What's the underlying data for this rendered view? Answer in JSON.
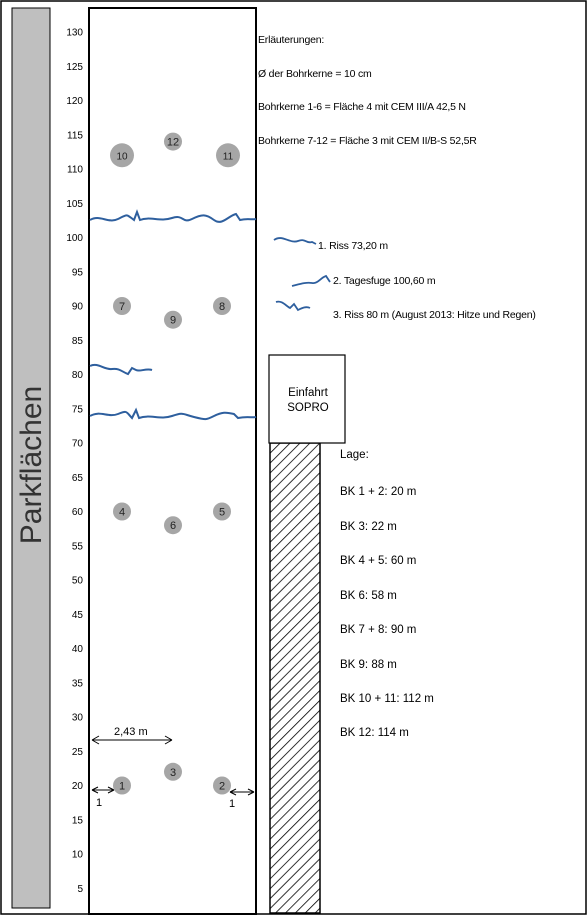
{
  "sidebar": {
    "label": "Parkflächen"
  },
  "axis": {
    "ticks": [
      "130",
      "125",
      "120",
      "115",
      "110",
      "105",
      "100",
      "95",
      "90",
      "85",
      "80",
      "75",
      "70",
      "65",
      "60",
      "55",
      "50",
      "45",
      "40",
      "35",
      "30",
      "25",
      "20",
      "15",
      "10",
      "5"
    ]
  },
  "cores": [
    {
      "label": "1",
      "value": 20,
      "size": "small"
    },
    {
      "label": "2",
      "value": 20,
      "size": "small"
    },
    {
      "label": "3",
      "value": 22,
      "size": "small"
    },
    {
      "label": "4",
      "value": 60,
      "size": "small"
    },
    {
      "label": "5",
      "value": 60,
      "size": "small"
    },
    {
      "label": "6",
      "value": 58,
      "size": "small"
    },
    {
      "label": "7",
      "value": 90,
      "size": "small"
    },
    {
      "label": "8",
      "value": 90,
      "size": "small"
    },
    {
      "label": "9",
      "value": 88,
      "size": "small"
    },
    {
      "label": "10",
      "value": 112,
      "size": "large"
    },
    {
      "label": "11",
      "value": 112,
      "size": "large"
    },
    {
      "label": "12",
      "value": 114,
      "size": "small"
    }
  ],
  "dimensions": {
    "width_label": "2,43 m",
    "left_margin": "1",
    "right_margin": "1"
  },
  "notes": {
    "title": "Erläuterungen:",
    "diameter": "Ø der Bohrkerne = 10 cm",
    "cores_1_6": "Bohrkerne 1-6 = Fläche 4 mit CEM III/A 42,5 N",
    "cores_7_12": "Bohrkerne 7-12 = Fläche 3 mit CEM II/B-S 52,5R"
  },
  "legend": [
    {
      "text": "1. Riss 73,20 m"
    },
    {
      "text": "2. Tagesfuge 100,60 m"
    },
    {
      "text": "3. Riss 80 m (August 2013: Hitze und Regen)"
    }
  ],
  "entrance": {
    "line1": "Einfahrt",
    "line2": "SOPRO"
  },
  "lage": {
    "title": "Lage:",
    "items": [
      "BK 1 + 2: 20 m",
      "BK 3: 22 m",
      "BK 4 + 5: 60 m",
      "BK 6: 58 m",
      "BK 7 + 8: 90 m",
      "BK 9: 88 m",
      "BK 10 + 11: 112 m",
      "BK 12: 114 m"
    ]
  },
  "colors": {
    "crack": "#2e5f9e",
    "core": "#a6a6a6",
    "sidebar": "#bfbfbf"
  }
}
